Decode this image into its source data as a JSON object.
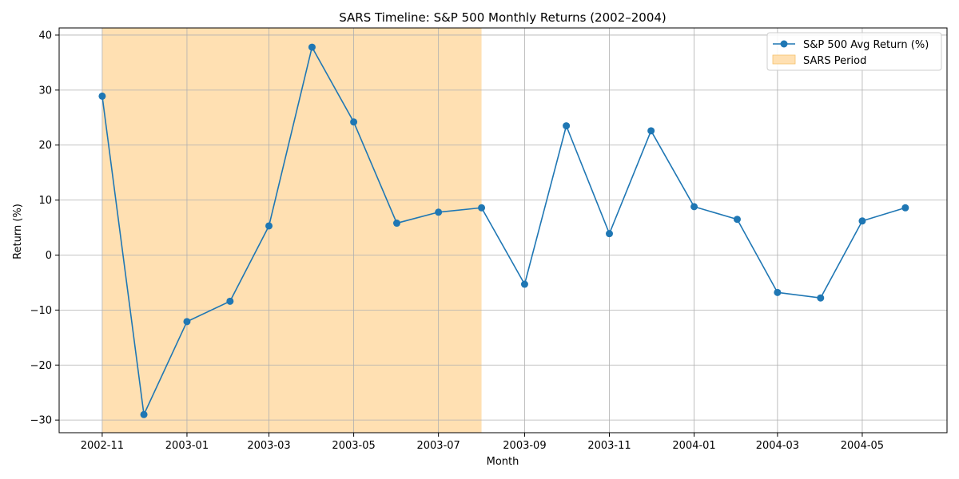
{
  "chart_data": {
    "type": "line",
    "title": "SARS Timeline: S&P 500 Monthly Returns (2002–2004)",
    "xlabel": "Month",
    "ylabel": "Return (%)",
    "x_ticks": [
      "2002-11",
      "2003-01",
      "2003-03",
      "2003-05",
      "2003-07",
      "2003-09",
      "2003-11",
      "2004-01",
      "2004-03",
      "2004-05"
    ],
    "y_ticks": [
      -30,
      -20,
      -10,
      0,
      10,
      20,
      30,
      40
    ],
    "ylim": [
      -32.3,
      41.3
    ],
    "xlim": [
      "2002-10-01",
      "2004-07-01"
    ],
    "grid": true,
    "legend_position": "top-right",
    "series": [
      {
        "name": "S&P 500 Avg Return (%)",
        "color": "#1f77b4",
        "marker": "circle",
        "x": [
          "2002-11",
          "2002-12",
          "2003-01",
          "2003-02",
          "2003-03",
          "2003-04",
          "2003-05",
          "2003-06",
          "2003-07",
          "2003-08",
          "2003-09",
          "2003-10",
          "2003-11",
          "2003-12",
          "2004-01",
          "2004-02",
          "2004-03",
          "2004-04",
          "2004-05",
          "2004-06"
        ],
        "values": [
          28.9,
          -29.0,
          -12.1,
          -8.4,
          5.3,
          37.8,
          24.2,
          5.8,
          7.8,
          8.6,
          -5.3,
          23.5,
          3.9,
          22.6,
          8.8,
          6.5,
          -6.8,
          -7.8,
          6.2,
          8.6
        ]
      }
    ],
    "shaded_region": {
      "name": "SARS Period",
      "start": "2002-11",
      "end": "2003-08",
      "color": "#ffe0b2"
    }
  }
}
